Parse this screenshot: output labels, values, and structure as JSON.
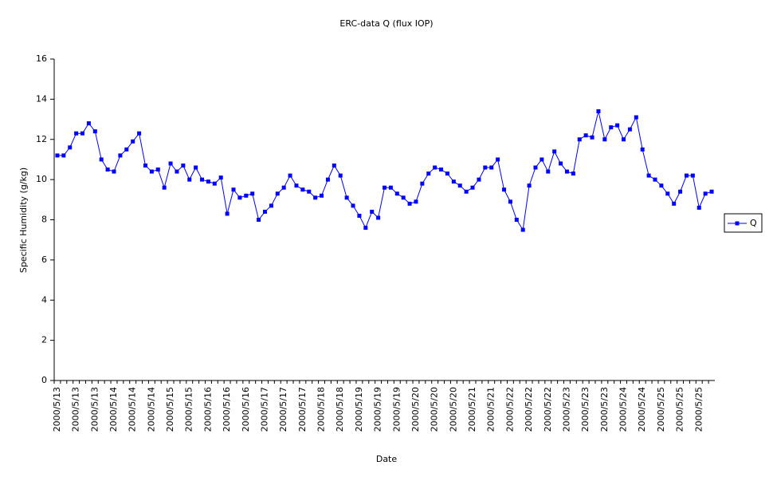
{
  "chart_data": {
    "type": "line",
    "title": "ERC-data Q (flux IOP)",
    "x_label": "Date",
    "y_label": "Specific Humidity (g/kg)",
    "categories": [
      "2000/5/13",
      null,
      null,
      "2000/5/13",
      null,
      null,
      "2000/5/13",
      null,
      null,
      "2000/5/14",
      null,
      null,
      "2000/5/14",
      null,
      null,
      "2000/5/14",
      null,
      null,
      "2000/5/15",
      null,
      null,
      "2000/5/15",
      null,
      null,
      "2000/5/16",
      null,
      null,
      "2000/5/16",
      null,
      null,
      "2000/5/16",
      null,
      null,
      "2000/5/17",
      null,
      null,
      "2000/5/17",
      null,
      null,
      "2000/5/17",
      null,
      null,
      "2000/5/18",
      null,
      null,
      "2000/5/18",
      null,
      null,
      "2000/5/19",
      null,
      null,
      "2000/5/19",
      null,
      null,
      "2000/5/19",
      null,
      null,
      "2000/5/20",
      null,
      null,
      "2000/5/20",
      null,
      null,
      "2000/5/20",
      null,
      null,
      "2000/5/21",
      null,
      null,
      "2000/5/21",
      null,
      null,
      "2000/5/22",
      null,
      null,
      "2000/5/22",
      null,
      null,
      "2000/5/22",
      null,
      null,
      "2000/5/23",
      null,
      null,
      "2000/5/23",
      null,
      null,
      "2000/5/23",
      null,
      null,
      "2000/5/24",
      null,
      null,
      "2000/5/24",
      null,
      null,
      "2000/5/25",
      null,
      null,
      "2000/5/25",
      null,
      null,
      "2000/5/25",
      null,
      null
    ],
    "series": [
      {
        "name": "Q",
        "color": "#0000ff",
        "values": [
          11.2,
          11.2,
          11.6,
          12.3,
          12.3,
          12.8,
          12.4,
          11.0,
          10.5,
          10.4,
          11.2,
          11.5,
          11.9,
          12.3,
          10.7,
          10.4,
          10.5,
          9.6,
          10.8,
          10.4,
          10.7,
          10.0,
          10.6,
          10.0,
          9.9,
          9.8,
          10.1,
          8.3,
          9.5,
          9.1,
          9.2,
          9.3,
          8.0,
          8.4,
          8.7,
          9.3,
          9.6,
          10.2,
          9.7,
          9.5,
          9.4,
          9.1,
          9.2,
          10.0,
          10.7,
          10.2,
          9.1,
          8.7,
          8.2,
          7.6,
          8.4,
          8.1,
          9.6,
          9.6,
          9.3,
          9.1,
          8.8,
          8.9,
          9.8,
          10.3,
          10.6,
          10.5,
          10.3,
          9.9,
          9.7,
          9.4,
          9.6,
          10.0,
          10.6,
          10.6,
          11.0,
          9.5,
          8.9,
          8.0,
          7.5,
          9.7,
          10.6,
          11.0,
          10.4,
          11.4,
          10.8,
          10.4,
          10.3,
          12.0,
          12.2,
          12.1,
          13.4,
          12.0,
          12.6,
          12.7,
          12.0,
          12.5,
          13.1,
          11.5,
          10.2,
          10.0,
          9.7,
          9.3,
          8.8,
          9.4,
          10.2,
          10.2,
          8.6,
          9.3,
          9.4
        ]
      }
    ],
    "ylim": [
      0,
      16
    ],
    "yticks": [
      0,
      2,
      4,
      6,
      8,
      10,
      12,
      14,
      16
    ],
    "grid": false,
    "legend": "right"
  }
}
